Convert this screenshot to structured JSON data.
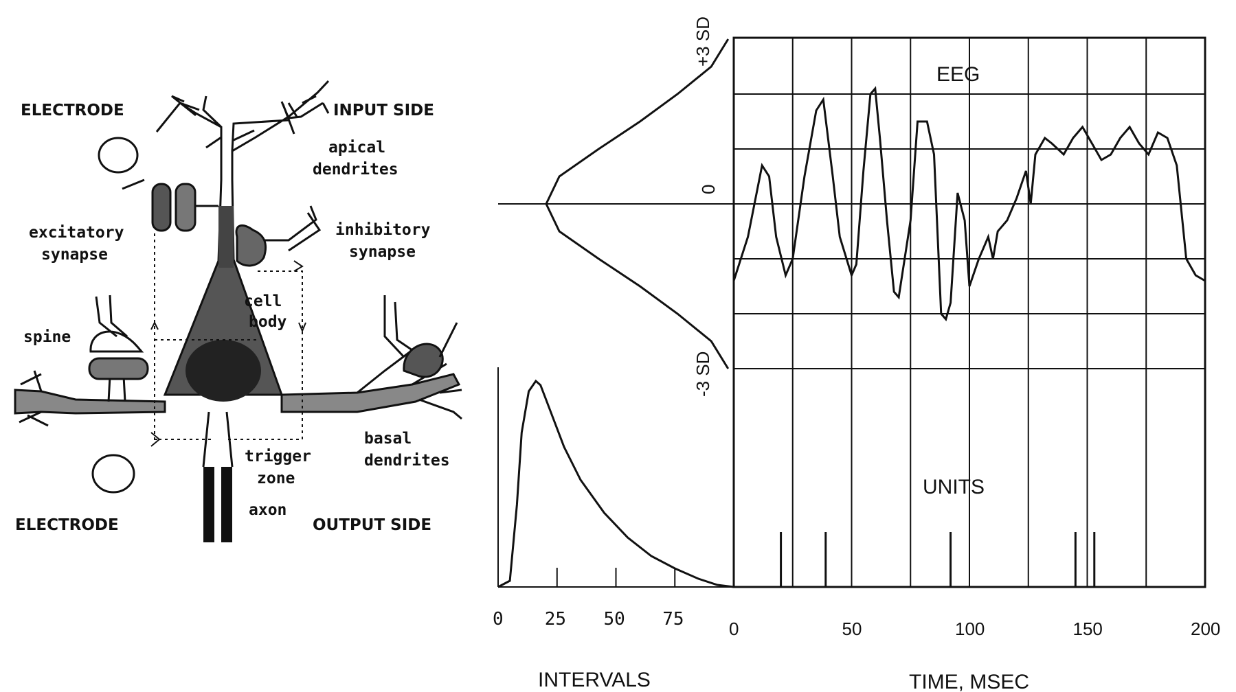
{
  "neuron": {
    "electrode_top": "ELECTRODE",
    "electrode_bottom": "ELECTRODE",
    "input_side": "INPUT SIDE",
    "output_side": "OUTPUT SIDE",
    "apical_1": "apical",
    "apical_2": "dendrites",
    "excit_1": "excitatory",
    "excit_2": "synapse",
    "inhib_1": "inhibitory",
    "inhib_2": "synapse",
    "cell_1": "cell",
    "cell_2": "body",
    "spine": "spine",
    "basal_1": "basal",
    "basal_2": "dendrites",
    "trigger_1": "trigger",
    "trigger_2": "zone",
    "axon": "axon"
  },
  "charts": {
    "eeg_title": "EEG",
    "units_title": "UNITS",
    "sd_top": "+3 SD",
    "sd_zero": "0",
    "sd_bottom": "-3 SD",
    "intervals_label": "INTERVALS",
    "time_label": "TIME, MSEC",
    "interval_ticks": [
      "0",
      "25",
      "50",
      "75"
    ],
    "time_ticks": [
      "0",
      "50",
      "100",
      "150",
      "200"
    ]
  },
  "chart_data": [
    {
      "type": "line",
      "xlabel": "TIME, MSEC",
      "ylabel": "",
      "title": "EEG",
      "xlim": [
        0,
        200
      ],
      "ylim": [
        -3,
        3
      ],
      "series": [
        {
          "x": [
            0,
            6,
            12,
            15,
            18,
            22,
            25,
            30,
            35,
            38,
            42,
            45,
            50,
            52,
            55,
            58,
            60,
            62,
            65,
            68,
            70,
            75,
            78,
            82,
            85,
            88,
            90,
            92,
            95,
            98,
            100,
            104,
            108,
            110,
            112,
            116,
            120,
            124,
            126,
            128,
            132,
            135,
            140,
            144,
            148,
            152,
            156,
            160,
            164,
            168,
            172,
            176,
            180,
            184,
            188,
            192,
            196,
            200
          ],
          "y": [
            -1.4,
            -0.6,
            0.7,
            0.5,
            -0.6,
            -1.3,
            -1.0,
            0.5,
            1.7,
            1.9,
            0.5,
            -0.6,
            -1.3,
            -1.1,
            0.6,
            2.0,
            2.1,
            1.2,
            -0.3,
            -1.6,
            -1.7,
            -0.3,
            1.5,
            1.5,
            0.9,
            -2.0,
            -2.1,
            -1.8,
            0.2,
            -0.3,
            -1.5,
            -1.0,
            -0.6,
            -1.0,
            -0.5,
            -0.3,
            0.1,
            0.6,
            0.0,
            0.9,
            1.2,
            1.1,
            0.9,
            1.2,
            1.4,
            1.1,
            0.8,
            0.9,
            1.2,
            1.4,
            1.1,
            0.9,
            1.3,
            1.2,
            0.7,
            -1.0,
            -1.3,
            -1.4
          ]
        }
      ]
    },
    {
      "type": "bar",
      "title": "UNITS",
      "xlabel": "TIME, MSEC",
      "xlim": [
        0,
        200
      ],
      "x": [
        20,
        39,
        92,
        145,
        153
      ],
      "values": [
        1,
        1,
        1,
        1,
        1
      ]
    },
    {
      "type": "line",
      "xlabel": "INTERVALS",
      "xlim": [
        0,
        100
      ],
      "x": [
        0,
        5,
        8,
        10,
        13,
        16,
        18,
        20,
        24,
        28,
        35,
        45,
        55,
        65,
        75,
        85,
        93,
        100
      ],
      "y": [
        0.0,
        0.03,
        0.4,
        0.75,
        0.95,
        1.0,
        0.98,
        0.92,
        0.8,
        0.68,
        0.52,
        0.36,
        0.24,
        0.15,
        0.09,
        0.04,
        0.01,
        0.0
      ]
    },
    {
      "type": "line",
      "title": "",
      "ylim": [
        -3,
        3
      ],
      "x": [
        -3,
        -2.5,
        -2,
        -1.5,
        -1,
        -0.5,
        0,
        0.5,
        1,
        1.5,
        2,
        2.5,
        3
      ],
      "y": [
        0.03,
        0.12,
        0.3,
        0.5,
        0.72,
        0.93,
        1.0,
        0.93,
        0.72,
        0.5,
        0.3,
        0.12,
        0.03
      ]
    }
  ]
}
